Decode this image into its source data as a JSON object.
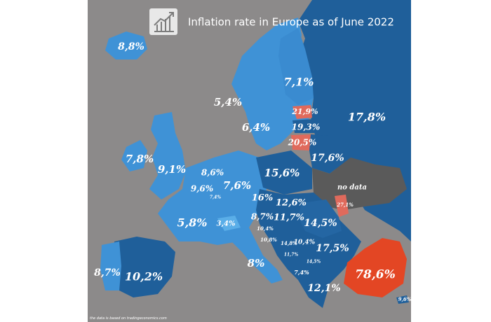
{
  "title": "Inflation rate in Europe as of June 2022",
  "credit": "the data is based on tradingeconomics.com",
  "icon": "bar-chart-growth-icon",
  "colors": {
    "sea": "#8c8a8a",
    "low": "#3f92d6",
    "mid": "#2f80c4",
    "high": "#1f5f9a",
    "extreme": "#e34624",
    "very_high": "#e06a5c",
    "no_data": "#5a5a5a"
  },
  "labels": [
    {
      "id": "iceland",
      "text": "8,8%"
    },
    {
      "id": "norway",
      "text": "5,4%"
    },
    {
      "id": "sweden",
      "text": "6,4%"
    },
    {
      "id": "finland",
      "text": "7,1%"
    },
    {
      "id": "estonia",
      "text": "21,9%"
    },
    {
      "id": "latvia",
      "text": "19,3%"
    },
    {
      "id": "lithuania",
      "text": "20,5%"
    },
    {
      "id": "russia",
      "text": "17,8%"
    },
    {
      "id": "belarus",
      "text": "17,6%"
    },
    {
      "id": "ireland",
      "text": "7,8%"
    },
    {
      "id": "uk",
      "text": "9,1%"
    },
    {
      "id": "netherlands",
      "text": "8,6%"
    },
    {
      "id": "belgium",
      "text": "9,6%"
    },
    {
      "id": "luxembourg",
      "text": "7,4%"
    },
    {
      "id": "germany",
      "text": "7,6%"
    },
    {
      "id": "poland",
      "text": "15,6%"
    },
    {
      "id": "ukraine",
      "text": "no data"
    },
    {
      "id": "czech",
      "text": "16%"
    },
    {
      "id": "slovakia",
      "text": "12,6%"
    },
    {
      "id": "moldova",
      "text": "27,1%"
    },
    {
      "id": "france",
      "text": "5,8%"
    },
    {
      "id": "switzerland",
      "text": "3,4%"
    },
    {
      "id": "austria",
      "text": "8,7%"
    },
    {
      "id": "hungary",
      "text": "11,7%"
    },
    {
      "id": "romania",
      "text": "14,5%"
    },
    {
      "id": "slovenia",
      "text": "10,4%"
    },
    {
      "id": "croatia",
      "text": "10,8%"
    },
    {
      "id": "bosnia",
      "text": "14,8%"
    },
    {
      "id": "serbia",
      "text": "10,4%"
    },
    {
      "id": "montenegro",
      "text": "11,7%"
    },
    {
      "id": "north_macedonia",
      "text": "14,5%"
    },
    {
      "id": "albania",
      "text": "7,4%"
    },
    {
      "id": "bulgaria",
      "text": "17,5%"
    },
    {
      "id": "portugal",
      "text": "8,7%"
    },
    {
      "id": "spain",
      "text": "10,2%"
    },
    {
      "id": "italy",
      "text": "8%"
    },
    {
      "id": "greece",
      "text": "12,1%"
    },
    {
      "id": "turkey",
      "text": "78,6%"
    },
    {
      "id": "cyprus",
      "text": "9,6%"
    }
  ]
}
